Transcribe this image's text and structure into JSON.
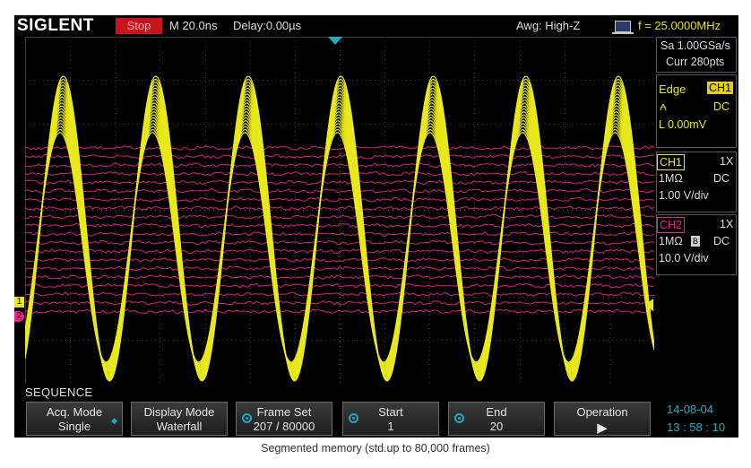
{
  "topbar": {
    "brand": "SIGLENT",
    "run_state": "Stop",
    "timebase": "M 20.0ns",
    "delay": "Delay:0.00µs",
    "awg": "Awg: High-Z",
    "frequency": "f = 25.0000MHz"
  },
  "right_panel": {
    "sample_rate": "Sa 1.00GSa/s",
    "memory": "Curr 280pts",
    "trigger": {
      "type": "Edge",
      "source": "CH1",
      "coupling": "DC",
      "level": "L  0.00mV"
    },
    "ch1": {
      "label": "CH1",
      "probe": "1X",
      "impedance": "1MΩ",
      "coupling": "DC",
      "scale": "1.00 V/div"
    },
    "ch2": {
      "label": "CH2",
      "probe": "1X",
      "impedance": "1MΩ",
      "bw_limit": "B",
      "coupling": "DC",
      "scale": "10.0 V/div"
    }
  },
  "menu": {
    "title": "SEQUENCE",
    "softkeys": [
      {
        "label": "Acq. Mode",
        "value": "Single"
      },
      {
        "label": "Display Mode",
        "value": "Waterfall"
      },
      {
        "label": "Frame Set",
        "value": "207 / 80000"
      },
      {
        "label": "Start",
        "value": "1"
      },
      {
        "label": "End",
        "value": "20"
      },
      {
        "label": "Operation",
        "value": "▶"
      }
    ]
  },
  "clock": {
    "date": "14-08-04",
    "time": "13 : 58 : 10"
  },
  "caption": "Segmented memory (std.up to 80,000 frames)",
  "markers": {
    "ch1_marker": "1",
    "ch2_marker": "2"
  },
  "colors": {
    "ch1": "#e8e81e",
    "ch2": "#e8208a",
    "run_state_bg": "#c8141e",
    "accent": "#1fa6c8",
    "trigger_tag_bg": "#e8d000"
  },
  "waveforms": {
    "ch1_cycles": 6.8,
    "ch1_frames": 20,
    "ch2_frames": 20
  }
}
